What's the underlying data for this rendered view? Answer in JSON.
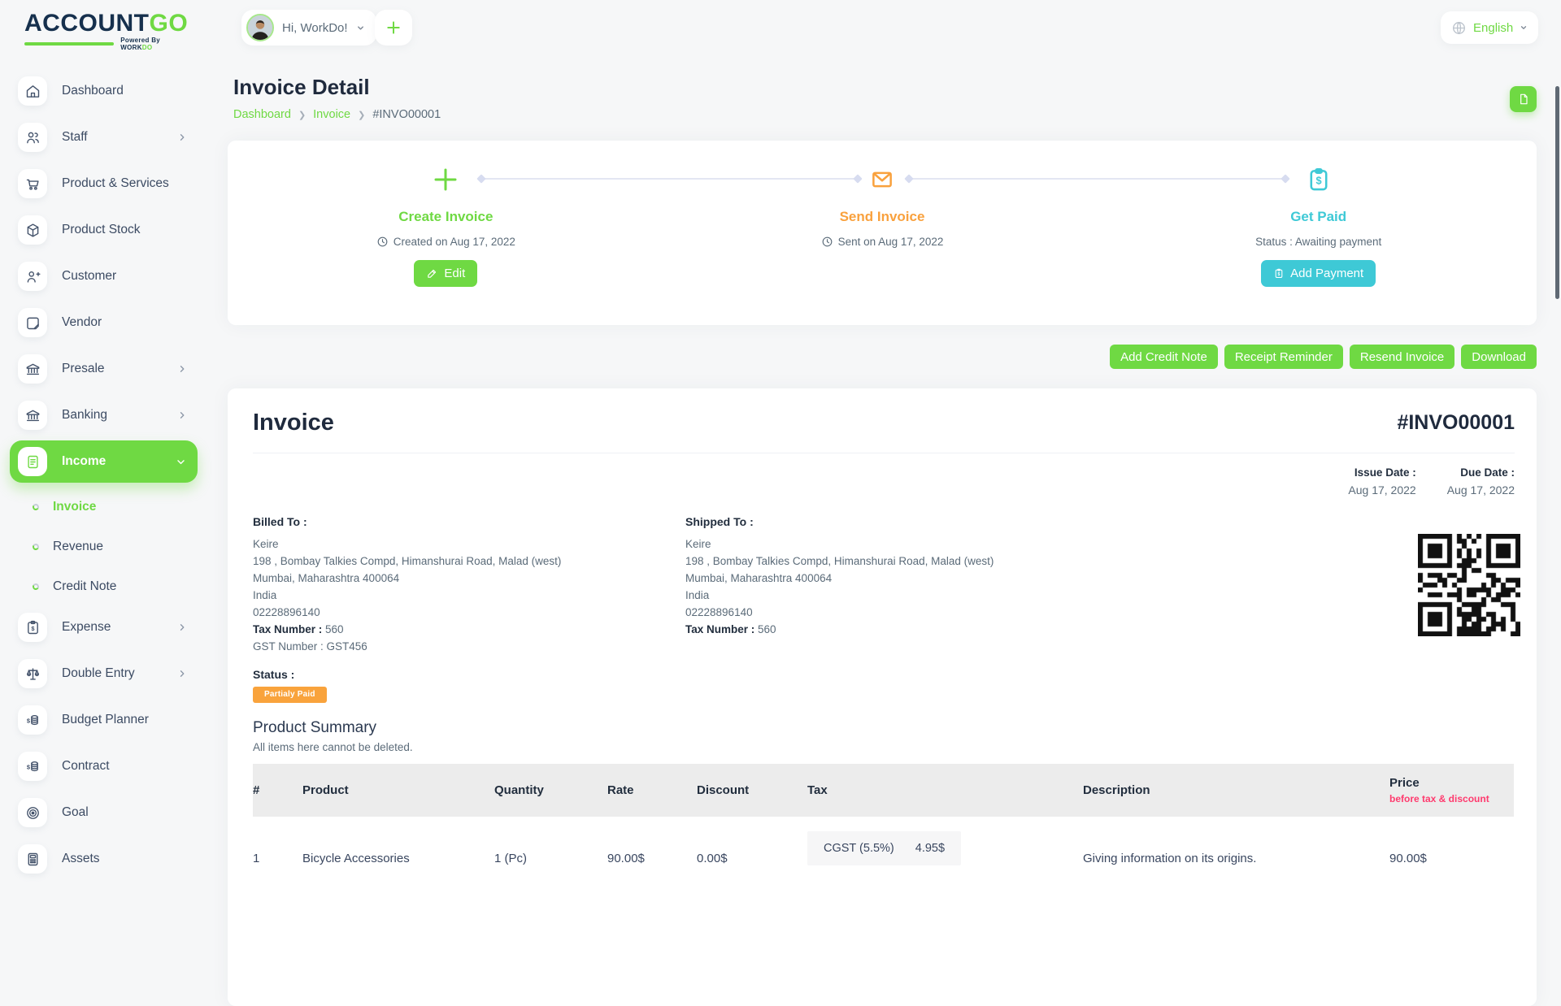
{
  "brand": {
    "name_part1": "ACCOUNT",
    "name_part2": "GO",
    "powered_prefix": "Powered By ",
    "powered_part1": "WORK",
    "powered_part2": "DO"
  },
  "topbar": {
    "greeting": "Hi, WorkDo!",
    "language": "English"
  },
  "sidebar": {
    "items": [
      {
        "label": "Dashboard",
        "icon": "home-icon"
      },
      {
        "label": "Staff",
        "icon": "staff-icon",
        "expandable": true
      },
      {
        "label": "Product & Services",
        "icon": "cart-icon"
      },
      {
        "label": "Product Stock",
        "icon": "box-icon"
      },
      {
        "label": "Customer",
        "icon": "user-plus-icon"
      },
      {
        "label": "Vendor",
        "icon": "vendor-card-icon"
      },
      {
        "label": "Presale",
        "icon": "bank-icon",
        "expandable": true
      },
      {
        "label": "Banking",
        "icon": "bank-icon",
        "expandable": true
      },
      {
        "label": "Income",
        "icon": "invoice-icon",
        "expandable": true,
        "active": true,
        "expanded": true,
        "submenu": [
          {
            "label": "Invoice",
            "active": true
          },
          {
            "label": "Revenue"
          },
          {
            "label": "Credit Note"
          }
        ]
      },
      {
        "label": "Expense",
        "icon": "clipboard-dollar-icon",
        "expandable": true
      },
      {
        "label": "Double Entry",
        "icon": "scales-icon",
        "expandable": true
      },
      {
        "label": "Budget Planner",
        "icon": "coins-icon"
      },
      {
        "label": "Contract",
        "icon": "coins-icon"
      },
      {
        "label": "Goal",
        "icon": "target-icon"
      },
      {
        "label": "Assets",
        "icon": "calculator-icon"
      }
    ]
  },
  "page": {
    "title": "Invoice Detail",
    "breadcrumb": {
      "link1": "Dashboard",
      "link2": "Invoice",
      "current": "#INVO00001"
    }
  },
  "stepper": {
    "create": {
      "title": "Create Invoice",
      "info": "Created on Aug 17, 2022",
      "button": "Edit"
    },
    "send": {
      "title": "Send Invoice",
      "info": "Sent on Aug 17, 2022"
    },
    "paid": {
      "title": "Get Paid",
      "info": "Status : Awaiting payment",
      "button": "Add Payment"
    }
  },
  "actions": [
    {
      "label": "Add Credit Note"
    },
    {
      "label": "Receipt Reminder"
    },
    {
      "label": "Resend Invoice"
    },
    {
      "label": "Download"
    }
  ],
  "invoice": {
    "heading": "Invoice",
    "number": "#INVO00001",
    "issue_date_label": "Issue Date :",
    "issue_date": "Aug 17, 2022",
    "due_date_label": "Due Date :",
    "due_date": "Aug 17, 2022",
    "billed_to": {
      "label": "Billed To :",
      "name": "Keire",
      "address": "198 , Bombay Talkies Compd, Himanshurai Road, Malad (west)",
      "city": "Mumbai, Maharashtra 400064",
      "country": "India",
      "phone": "02228896140",
      "tax_label": "Tax Number :",
      "tax_value": "560",
      "gst_line": "GST Number : GST456"
    },
    "shipped_to": {
      "label": "Shipped To :",
      "name": "Keire",
      "address": "198 , Bombay Talkies Compd, Himanshurai Road, Malad (west)",
      "city": "Mumbai, Maharashtra 400064",
      "country": "India",
      "phone": "02228896140",
      "tax_label": "Tax Number :",
      "tax_value": "560"
    },
    "status_label": "Status :",
    "status_badge": "Partialy Paid",
    "summary_title": "Product Summary",
    "summary_note": "All items here cannot be deleted.",
    "table": {
      "headers": [
        "#",
        "Product",
        "Quantity",
        "Rate",
        "Discount",
        "Tax",
        "Description",
        "Price"
      ],
      "price_note": "before tax & discount",
      "rows": [
        {
          "num": "1",
          "product": "Bicycle Accessories",
          "quantity": "1 (Pc)",
          "rate": "90.00$",
          "discount": "0.00$",
          "tax_name": "CGST (5.5%)",
          "tax_value": "4.95$",
          "description": "Giving information on its origins.",
          "price": "90.00$"
        }
      ]
    }
  },
  "colors": {
    "primary_green": "#6fd943",
    "teal": "#3ec9d6",
    "orange": "#f9a13d",
    "badge_orange": "#f9a33c",
    "pink": "#ff3a6e",
    "dark_navy": "#16304d"
  }
}
